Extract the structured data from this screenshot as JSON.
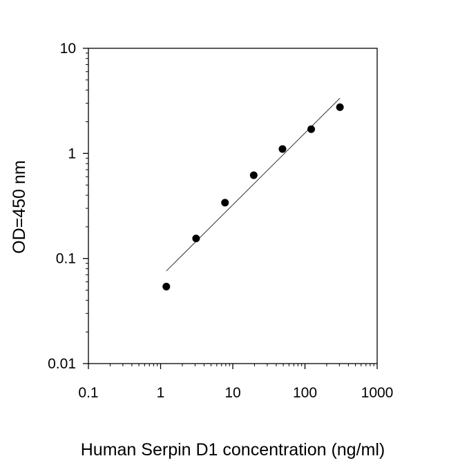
{
  "chart_data": {
    "type": "scatter",
    "title": "",
    "xlabel": "Human Serpin D1 concentration (ng/ml)",
    "ylabel": "OD=450 nm",
    "x_scale": "log",
    "y_scale": "log",
    "xlim": [
      0.1,
      1000
    ],
    "ylim": [
      0.01,
      10
    ],
    "x_ticks": [
      0.1,
      1,
      10,
      100,
      1000
    ],
    "x_tick_labels": [
      "0.1",
      "1",
      "10",
      "100",
      "1000"
    ],
    "y_ticks": [
      0.01,
      0.1,
      1,
      10
    ],
    "y_tick_labels": [
      "0.01",
      "0.1",
      "1",
      "10"
    ],
    "grid": false,
    "series": [
      {
        "type": "scatter",
        "x": [
          1.2,
          3.1,
          7.8,
          19.5,
          48.8,
          122,
          305
        ],
        "y": [
          0.054,
          0.155,
          0.34,
          0.62,
          1.1,
          1.7,
          2.75
        ]
      },
      {
        "type": "line",
        "x": [
          1.2,
          305
        ],
        "y": [
          0.076,
          3.35
        ]
      }
    ],
    "colors": {
      "points": "#000000",
      "fit_line": "#333333",
      "axes": "#000000"
    }
  }
}
